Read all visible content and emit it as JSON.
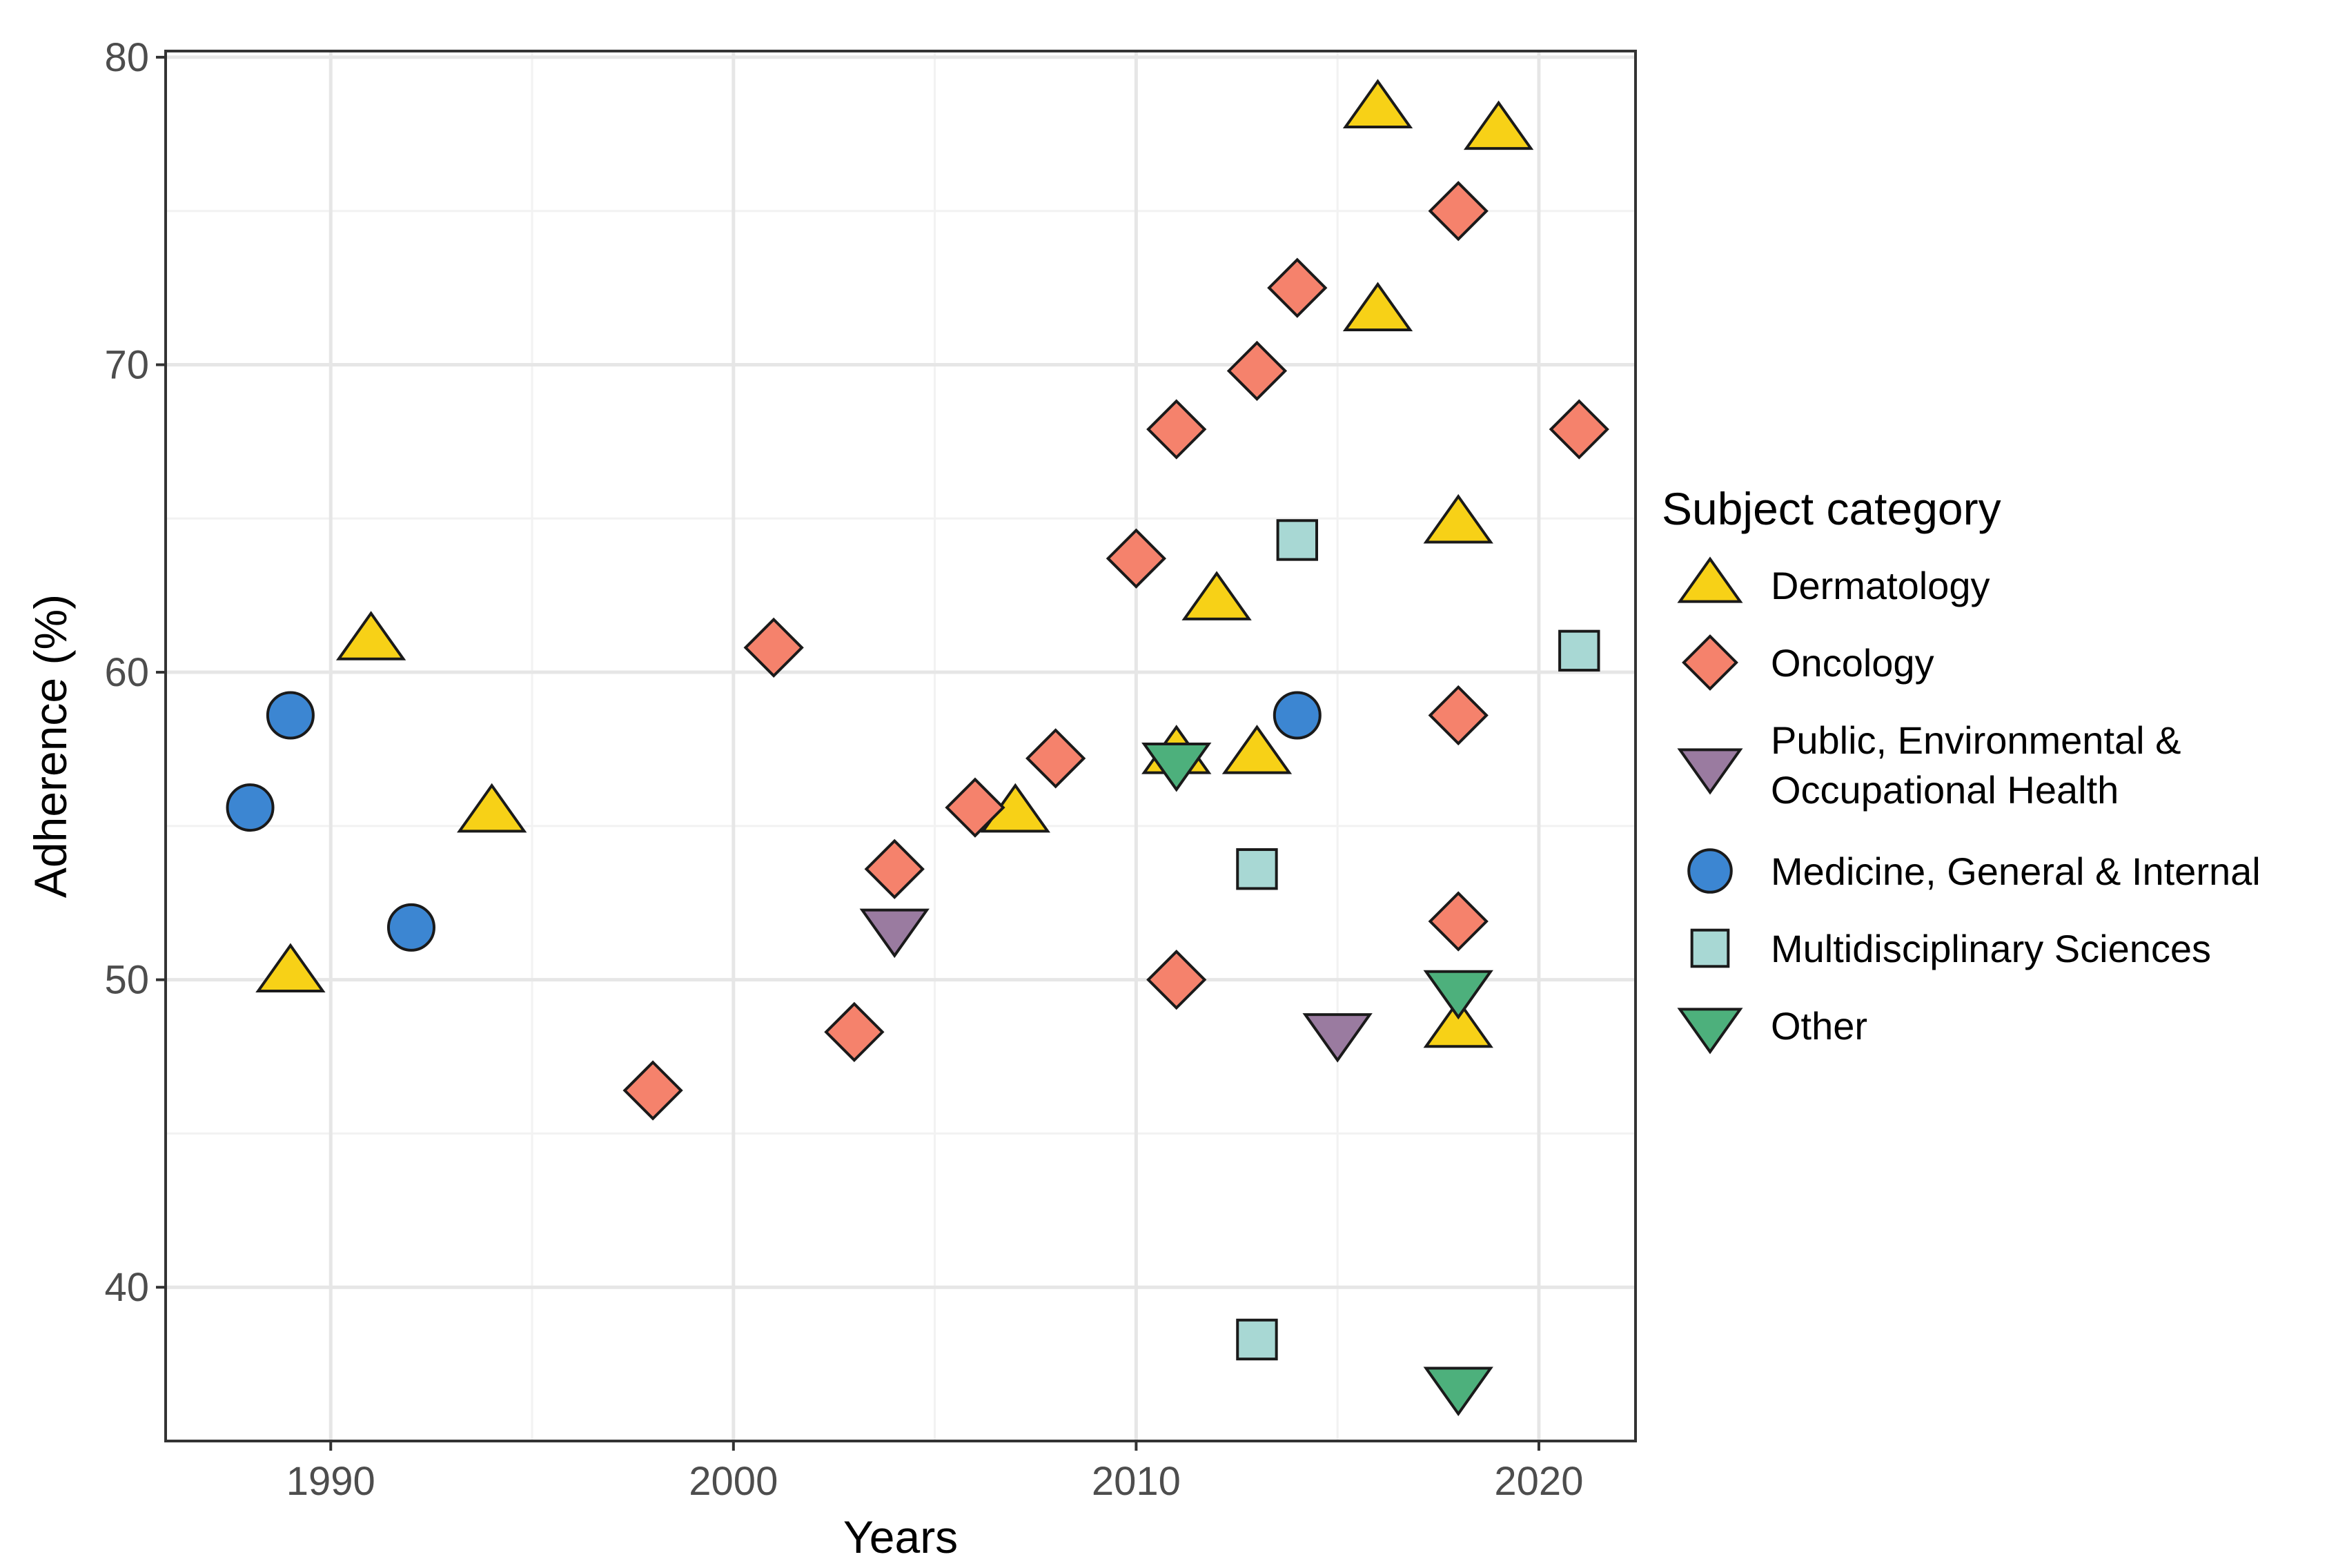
{
  "chart_data": {
    "type": "scatter",
    "xlabel": "Years",
    "ylabel": "Adherence (%)",
    "xlim": [
      1985.9,
      2022.4
    ],
    "ylim": [
      35.0,
      80.2
    ],
    "x_ticks": [
      1990,
      2000,
      2010,
      2020
    ],
    "y_ticks": [
      40,
      50,
      60,
      70,
      80
    ],
    "x_tick_labels": [
      "1990",
      "2000",
      "2010",
      "2020"
    ],
    "y_tick_labels": [
      "40",
      "50",
      "60",
      "70",
      "80"
    ],
    "grid": true,
    "legend": {
      "title": "Subject category",
      "position": "right"
    },
    "series": [
      {
        "name": "Dermatology",
        "label_lines": [
          "Dermatology"
        ],
        "shape": "triangle-up",
        "color": "#F7D117",
        "points": [
          [
            1989,
            50.2
          ],
          [
            1991,
            61.0
          ],
          [
            1994,
            55.4
          ],
          [
            2007,
            55.4
          ],
          [
            2011,
            57.3
          ],
          [
            2012,
            62.3
          ],
          [
            2013,
            57.3
          ],
          [
            2016,
            78.3
          ],
          [
            2016,
            71.7
          ],
          [
            2018,
            64.8
          ],
          [
            2018,
            48.4
          ],
          [
            2019,
            77.6
          ]
        ]
      },
      {
        "name": "Oncology",
        "label_lines": [
          "Oncology"
        ],
        "shape": "diamond",
        "color": "#F5826C",
        "points": [
          [
            1998,
            46.4
          ],
          [
            2001,
            60.8
          ],
          [
            2003,
            48.3
          ],
          [
            2004,
            53.6
          ],
          [
            2006,
            55.6
          ],
          [
            2008,
            57.2
          ],
          [
            2010,
            63.7
          ],
          [
            2011,
            67.9
          ],
          [
            2011,
            50.0
          ],
          [
            2013,
            69.8
          ],
          [
            2014,
            72.5
          ],
          [
            2018,
            75.0
          ],
          [
            2018,
            58.6
          ],
          [
            2018,
            51.9
          ],
          [
            2021,
            67.9
          ]
        ]
      },
      {
        "name": "Public, Environmental & Occupational Health",
        "label_lines": [
          "Public, Environmental &",
          "Occupational Health"
        ],
        "shape": "triangle-down",
        "color": "#9A7BA0",
        "points": [
          [
            2004,
            51.7
          ],
          [
            2015,
            48.3
          ]
        ]
      },
      {
        "name": "Medicine, General & Internal",
        "label_lines": [
          "Medicine, General & Internal"
        ],
        "shape": "circle",
        "color": "#3C86D2",
        "points": [
          [
            1988,
            55.6
          ],
          [
            1989,
            58.6
          ],
          [
            1992,
            51.7
          ],
          [
            2014,
            58.6
          ]
        ]
      },
      {
        "name": "Multidisciplinary Sciences",
        "label_lines": [
          "Multidisciplinary Sciences"
        ],
        "shape": "square",
        "color": "#A8D8D4",
        "points": [
          [
            2013,
            38.3
          ],
          [
            2013,
            53.6
          ],
          [
            2014,
            64.3
          ],
          [
            2021,
            60.7
          ]
        ]
      },
      {
        "name": "Other",
        "label_lines": [
          "Other"
        ],
        "shape": "triangle-down",
        "color": "#4DB07C",
        "points": [
          [
            2011,
            57.1
          ],
          [
            2018,
            49.7
          ],
          [
            2018,
            36.8
          ]
        ]
      }
    ]
  }
}
